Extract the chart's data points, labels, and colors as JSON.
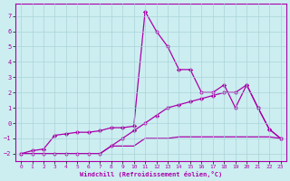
{
  "xlabel": "Windchill (Refroidissement éolien,°C)",
  "bg_color": "#cceef0",
  "grid_color": "#aad4d8",
  "line_color": "#aa00aa",
  "ylim": [
    -2.5,
    7.8
  ],
  "xlim": [
    -0.5,
    23.5
  ],
  "yticks": [
    -2,
    -1,
    0,
    1,
    2,
    3,
    4,
    5,
    6,
    7
  ],
  "xticks": [
    0,
    1,
    2,
    3,
    4,
    5,
    6,
    7,
    8,
    9,
    10,
    11,
    12,
    13,
    14,
    15,
    16,
    17,
    18,
    19,
    20,
    21,
    22,
    23
  ],
  "line1_x": [
    0,
    1,
    2,
    3,
    4,
    5,
    6,
    7,
    8,
    9,
    10,
    11,
    12,
    13,
    14,
    15,
    16,
    17,
    18,
    19,
    20,
    21,
    22,
    23
  ],
  "line1_y": [
    -2.0,
    -2.0,
    -2.0,
    -2.0,
    -2.0,
    -2.0,
    -2.0,
    -2.0,
    -1.5,
    -1.5,
    -1.5,
    -1.0,
    -1.0,
    -1.0,
    -0.9,
    -0.9,
    -0.9,
    -0.9,
    -0.9,
    -0.9,
    -0.9,
    -0.9,
    -0.9,
    -1.0
  ],
  "line2_x": [
    0,
    1,
    2,
    3,
    4,
    5,
    6,
    7,
    8,
    9,
    10,
    11,
    12,
    13,
    14,
    15,
    16,
    17,
    18,
    19,
    20,
    21,
    22,
    23
  ],
  "line2_y": [
    -2.0,
    -1.8,
    -1.7,
    -0.8,
    -0.7,
    -0.6,
    -0.6,
    -0.5,
    -0.3,
    -0.3,
    -0.2,
    7.3,
    6.0,
    5.0,
    3.5,
    3.5,
    2.0,
    2.0,
    2.5,
    1.0,
    2.5,
    1.0,
    -0.4,
    -1.0
  ],
  "line3_x": [
    0,
    1,
    2,
    3,
    4,
    5,
    6,
    7,
    8,
    9,
    10,
    11,
    12,
    13,
    14,
    15,
    16,
    17,
    18,
    19,
    20,
    21,
    22,
    23
  ],
  "line3_y": [
    -2.0,
    -2.0,
    -2.0,
    -2.0,
    -2.0,
    -2.0,
    -2.0,
    -2.0,
    -1.5,
    -1.0,
    -0.5,
    0.0,
    0.5,
    1.0,
    1.2,
    1.4,
    1.6,
    1.8,
    2.0,
    2.0,
    2.5,
    1.0,
    -0.4,
    -1.0
  ]
}
